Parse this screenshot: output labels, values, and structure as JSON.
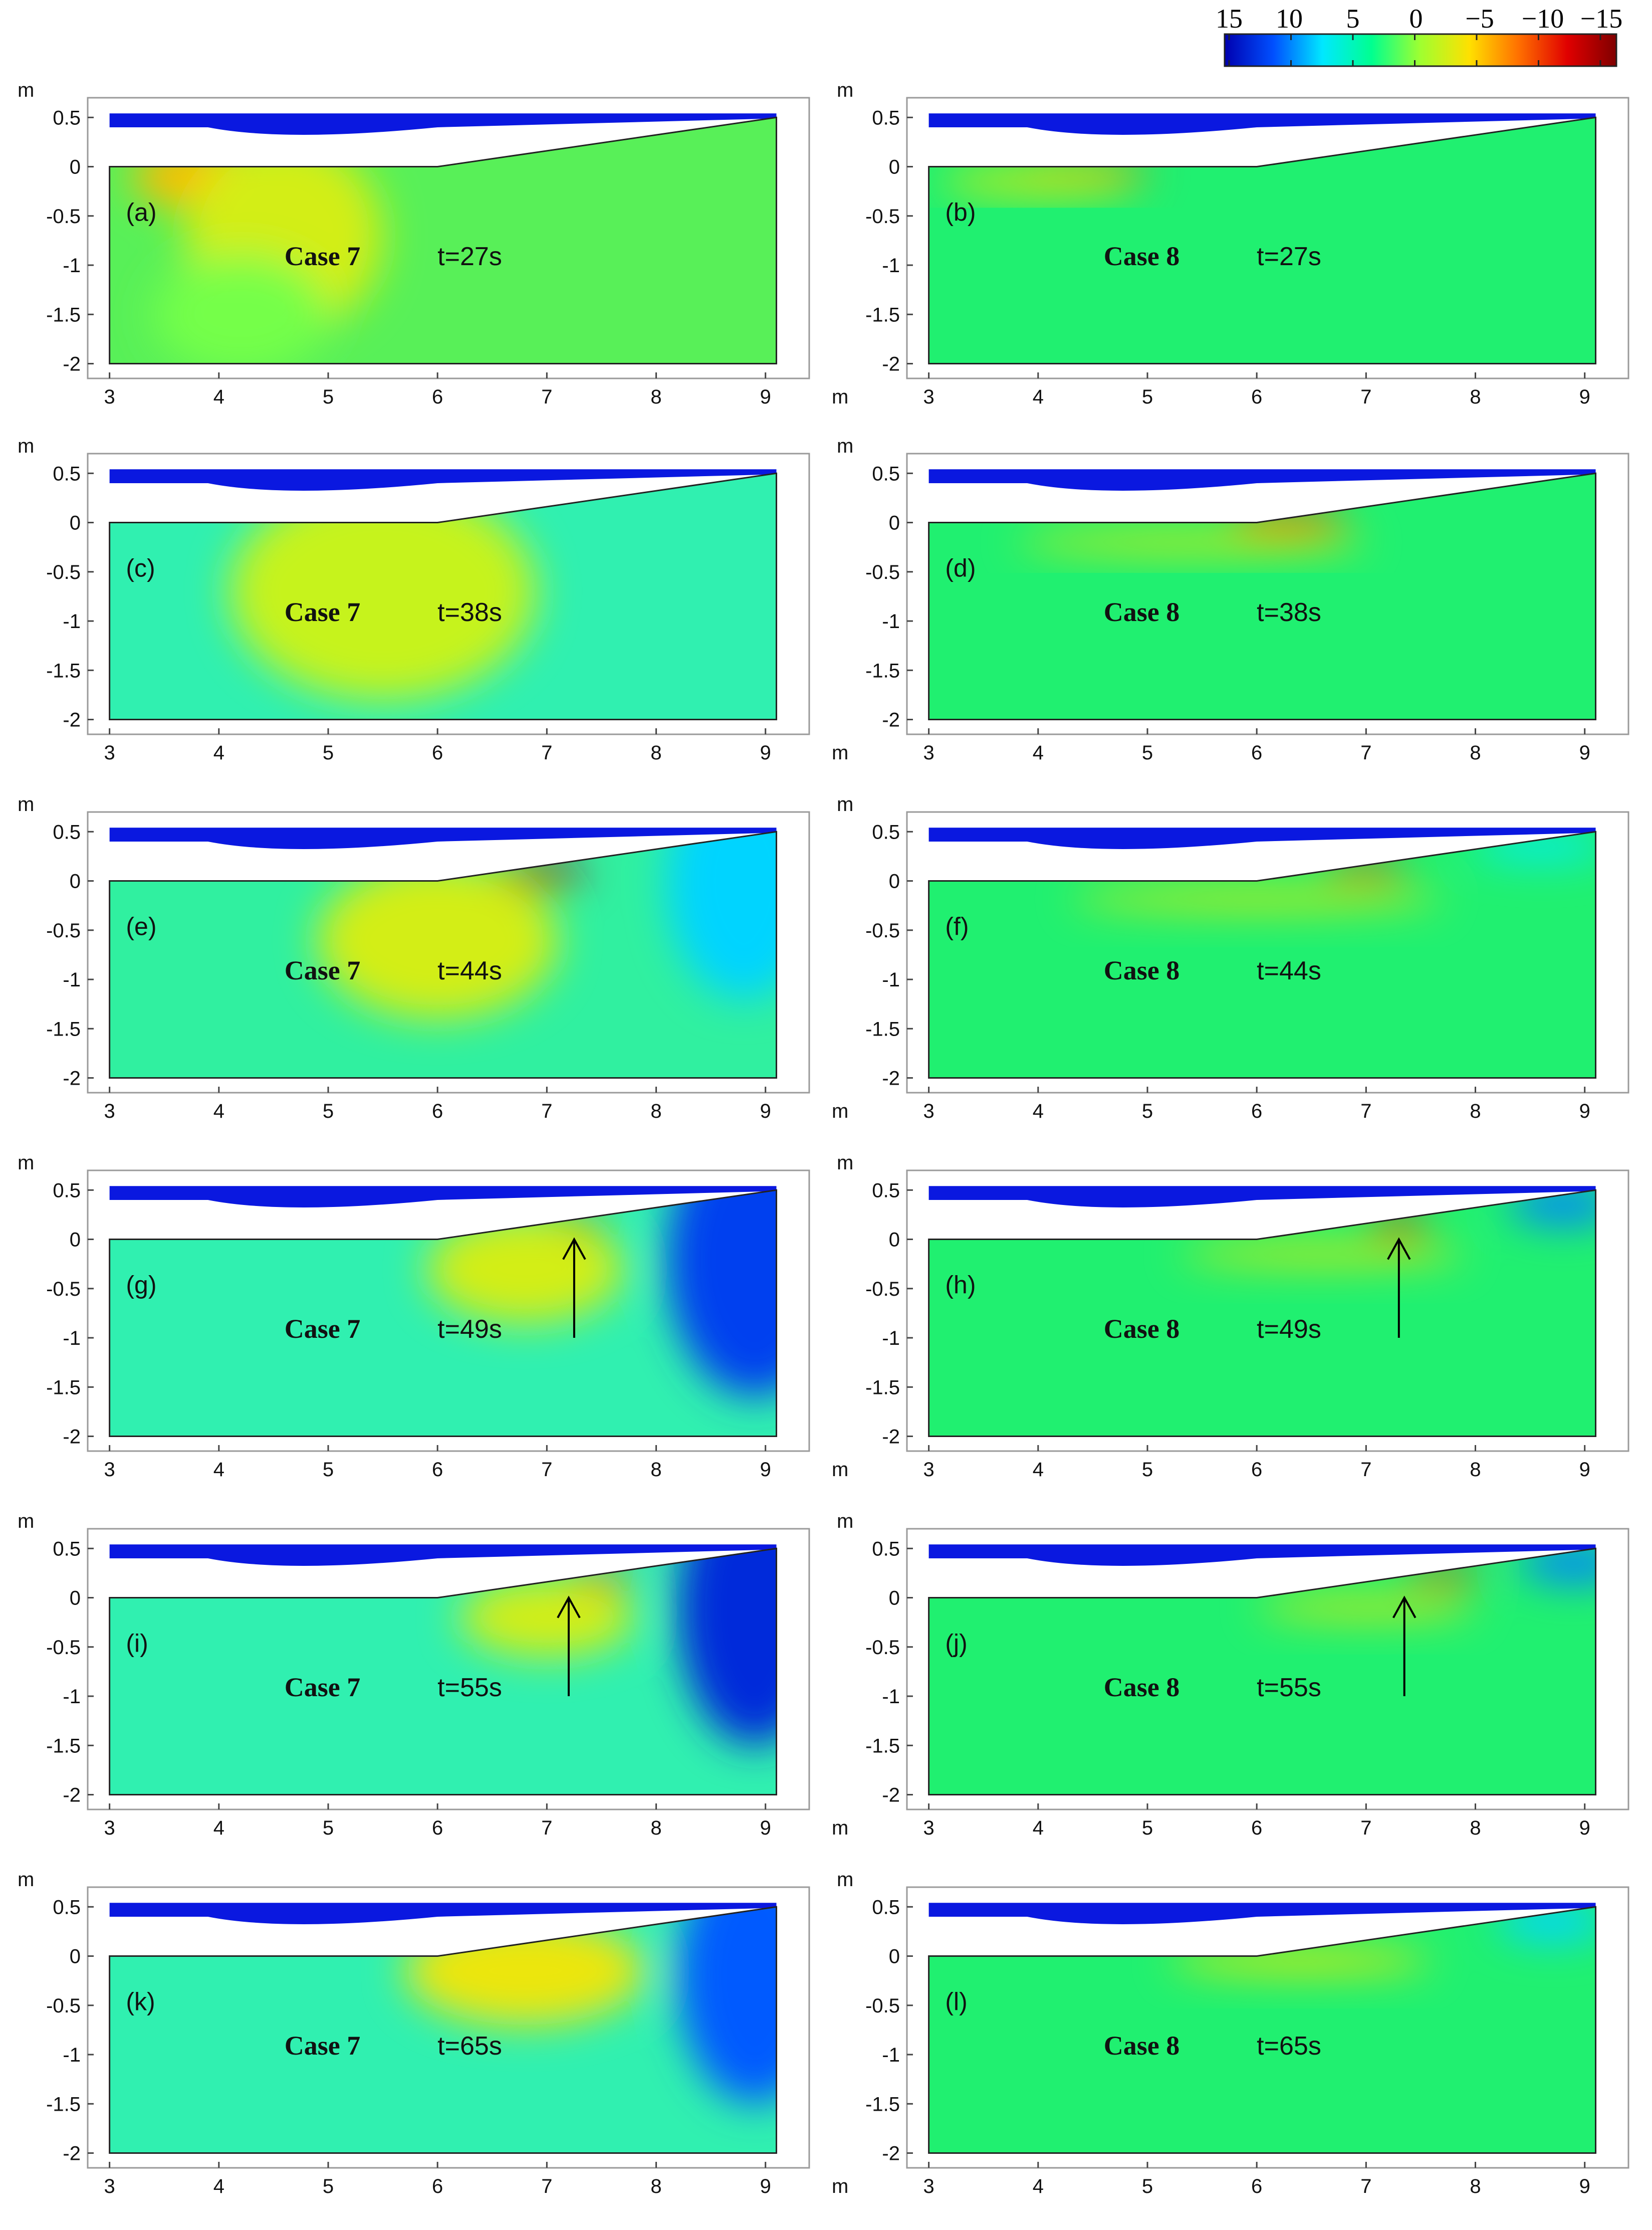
{
  "colorbar": {
    "ticks": [
      "15",
      "10",
      "5",
      "0",
      "−5",
      "−10",
      "−15"
    ],
    "stops": [
      "#0000b0",
      "#0050ff",
      "#00e8ff",
      "#00ff90",
      "#a0ff30",
      "#ffe000",
      "#ff7000",
      "#e00000",
      "#800000"
    ]
  },
  "colors": {
    "water": "#0a18e0",
    "frame": "#9a9a9a",
    "bed_line": "#222222"
  },
  "chart_data": [
    {
      "type": "heatmap",
      "panel": "(a)",
      "case": "Case 7",
      "time": "t=27s",
      "x_ticks": [
        "3",
        "4",
        "5",
        "6",
        "7",
        "8",
        "9"
      ],
      "x_unit": "m",
      "y_ticks": [
        "0.5",
        "0",
        "-0.5",
        "-1",
        "-1.5",
        "-2"
      ],
      "y_unit": "m",
      "xlim": [
        2.8,
        9.4
      ],
      "ylim": [
        -2.15,
        0.7
      ],
      "bed_profile": [
        [
          3.0,
          0.0
        ],
        [
          6.0,
          0.0
        ],
        [
          9.1,
          0.5
        ]
      ],
      "seabed_bottom": -2.0,
      "background": "#58f058",
      "hotspots": [
        {
          "x": 4.0,
          "y": -0.1,
          "rx": 0.8,
          "ry": 0.35,
          "value": -5
        },
        {
          "x": 4.6,
          "y": -0.7,
          "rx": 0.9,
          "ry": 1.0,
          "value": -2
        },
        {
          "x": 4.2,
          "y": -1.5,
          "rx": 0.8,
          "ry": 0.6,
          "value": 1
        }
      ]
    },
    {
      "type": "heatmap",
      "panel": "(b)",
      "case": "Case 8",
      "time": "t=27s",
      "x_ticks": [
        "3",
        "4",
        "5",
        "6",
        "7",
        "8",
        "9"
      ],
      "x_unit": "m",
      "y_ticks": [
        "0.5",
        "0",
        "-0.5",
        "-1",
        "-1.5",
        "-2"
      ],
      "y_unit": "m",
      "xlim": [
        2.8,
        9.4
      ],
      "ylim": [
        -2.15,
        0.7
      ],
      "bed_profile": [
        [
          3.0,
          0.0
        ],
        [
          6.0,
          0.0
        ],
        [
          9.1,
          0.5
        ]
      ],
      "seabed_bottom": -2.0,
      "background": "#20f070",
      "hotspots": [
        {
          "x": 4.4,
          "y": -0.06,
          "rx": 0.65,
          "ry": 0.08,
          "value": -9
        },
        {
          "x": 4.0,
          "y": -0.15,
          "rx": 0.9,
          "ry": 0.12,
          "value": -3
        }
      ]
    },
    {
      "type": "heatmap",
      "panel": "(c)",
      "case": "Case 7",
      "time": "t=38s",
      "x_ticks": [
        "3",
        "4",
        "5",
        "6",
        "7",
        "8",
        "9"
      ],
      "x_unit": "m",
      "y_ticks": [
        "0.5",
        "0",
        "-0.5",
        "-1",
        "-1.5",
        "-2"
      ],
      "y_unit": "m",
      "xlim": [
        2.8,
        9.4
      ],
      "ylim": [
        -2.15,
        0.7
      ],
      "bed_profile": [
        [
          3.0,
          0.0
        ],
        [
          6.0,
          0.0
        ],
        [
          9.1,
          0.5
        ]
      ],
      "seabed_bottom": -2.0,
      "background": "#30f0b0",
      "hotspots": [
        {
          "x": 5.9,
          "y": -0.08,
          "rx": 0.7,
          "ry": 0.15,
          "value": -7
        },
        {
          "x": 5.5,
          "y": -0.7,
          "rx": 1.4,
          "ry": 1.1,
          "value": -1.5
        }
      ]
    },
    {
      "type": "heatmap",
      "panel": "(d)",
      "case": "Case 8",
      "time": "t=38s",
      "x_ticks": [
        "3",
        "4",
        "5",
        "6",
        "7",
        "8",
        "9"
      ],
      "x_unit": "m",
      "y_ticks": [
        "0.5",
        "0",
        "-0.5",
        "-1",
        "-1.5",
        "-2"
      ],
      "y_unit": "m",
      "xlim": [
        2.8,
        9.4
      ],
      "ylim": [
        -2.15,
        0.7
      ],
      "bed_profile": [
        [
          3.0,
          0.0
        ],
        [
          6.0,
          0.0
        ],
        [
          9.1,
          0.5
        ]
      ],
      "seabed_bottom": -2.0,
      "background": "#20f070",
      "hotspots": [
        {
          "x": 6.3,
          "y": 0.02,
          "rx": 0.55,
          "ry": 0.1,
          "value": -9
        },
        {
          "x": 5.4,
          "y": -0.2,
          "rx": 1.6,
          "ry": 0.1,
          "value": -3
        }
      ]
    },
    {
      "type": "heatmap",
      "panel": "(e)",
      "case": "Case 7",
      "time": "t=44s",
      "x_ticks": [
        "3",
        "4",
        "5",
        "6",
        "7",
        "8",
        "9"
      ],
      "x_unit": "m",
      "y_ticks": [
        "0.5",
        "0",
        "-0.5",
        "-1",
        "-1.5",
        "-2"
      ],
      "y_unit": "m",
      "xlim": [
        2.8,
        9.4
      ],
      "ylim": [
        -2.15,
        0.7
      ],
      "bed_profile": [
        [
          3.0,
          0.0
        ],
        [
          6.0,
          0.0
        ],
        [
          9.1,
          0.5
        ]
      ],
      "seabed_bottom": -2.0,
      "background": "#30f0a0",
      "hotspots": [
        {
          "x": 6.9,
          "y": 0.07,
          "rx": 0.45,
          "ry": 0.12,
          "value": -13
        },
        {
          "x": 6.0,
          "y": -0.6,
          "rx": 1.1,
          "ry": 0.8,
          "value": -2
        },
        {
          "x": 8.8,
          "y": 0.0,
          "rx": 0.7,
          "ry": 1.2,
          "value": 8
        }
      ]
    },
    {
      "type": "heatmap",
      "panel": "(f)",
      "case": "Case 8",
      "time": "t=44s",
      "x_ticks": [
        "3",
        "4",
        "5",
        "6",
        "7",
        "8",
        "9"
      ],
      "x_unit": "m",
      "y_ticks": [
        "0.5",
        "0",
        "-0.5",
        "-1",
        "-1.5",
        "-2"
      ],
      "y_unit": "m",
      "xlim": [
        2.8,
        9.4
      ],
      "ylim": [
        -2.15,
        0.7
      ],
      "bed_profile": [
        [
          3.0,
          0.0
        ],
        [
          6.0,
          0.0
        ],
        [
          9.1,
          0.5
        ]
      ],
      "seabed_bottom": -2.0,
      "background": "#20f070",
      "hotspots": [
        {
          "x": 7.0,
          "y": 0.12,
          "rx": 0.4,
          "ry": 0.08,
          "value": -10
        },
        {
          "x": 6.0,
          "y": -0.18,
          "rx": 1.7,
          "ry": 0.1,
          "value": -3
        },
        {
          "x": 8.6,
          "y": 0.35,
          "rx": 0.6,
          "ry": 0.15,
          "value": 7
        }
      ]
    },
    {
      "type": "heatmap",
      "panel": "(g)",
      "case": "Case 7",
      "time": "t=49s",
      "x_ticks": [
        "3",
        "4",
        "5",
        "6",
        "7",
        "8",
        "9"
      ],
      "x_unit": "m",
      "y_ticks": [
        "0.5",
        "0",
        "-0.5",
        "-1",
        "-1.5",
        "-2"
      ],
      "y_unit": "m",
      "xlim": [
        2.8,
        9.4
      ],
      "ylim": [
        -2.15,
        0.7
      ],
      "bed_profile": [
        [
          3.0,
          0.0
        ],
        [
          6.0,
          0.0
        ],
        [
          9.1,
          0.5
        ]
      ],
      "seabed_bottom": -2.0,
      "background": "#30f0b0",
      "hotspots": [
        {
          "x": 7.2,
          "y": 0.15,
          "rx": 0.3,
          "ry": 0.12,
          "value": -14
        },
        {
          "x": 6.8,
          "y": -0.3,
          "rx": 0.9,
          "ry": 0.55,
          "value": -2
        },
        {
          "x": 8.9,
          "y": -0.2,
          "rx": 0.8,
          "ry": 1.4,
          "value": 12
        }
      ],
      "arrow": {
        "from": [
          7.25,
          -1.0
        ],
        "to": [
          7.25,
          0.0
        ]
      }
    },
    {
      "type": "heatmap",
      "panel": "(h)",
      "case": "Case 8",
      "time": "t=49s",
      "x_ticks": [
        "3",
        "4",
        "5",
        "6",
        "7",
        "8",
        "9"
      ],
      "x_unit": "m",
      "y_ticks": [
        "0.5",
        "0",
        "-0.5",
        "-1",
        "-1.5",
        "-2"
      ],
      "y_unit": "m",
      "xlim": [
        2.8,
        9.4
      ],
      "ylim": [
        -2.15,
        0.7
      ],
      "bed_profile": [
        [
          3.0,
          0.0
        ],
        [
          6.0,
          0.0
        ],
        [
          9.1,
          0.5
        ]
      ],
      "seabed_bottom": -2.0,
      "background": "#20f070",
      "hotspots": [
        {
          "x": 7.3,
          "y": 0.14,
          "rx": 0.28,
          "ry": 0.1,
          "value": -12
        },
        {
          "x": 6.6,
          "y": -0.15,
          "rx": 1.3,
          "ry": 0.1,
          "value": -3
        },
        {
          "x": 8.8,
          "y": 0.35,
          "rx": 0.5,
          "ry": 0.2,
          "value": 10
        }
      ],
      "arrow": {
        "from": [
          7.3,
          -1.0
        ],
        "to": [
          7.3,
          0.0
        ]
      }
    },
    {
      "type": "heatmap",
      "panel": "(i)",
      "case": "Case 7",
      "time": "t=55s",
      "x_ticks": [
        "3",
        "4",
        "5",
        "6",
        "7",
        "8",
        "9"
      ],
      "x_unit": "m",
      "y_ticks": [
        "0.5",
        "0",
        "-0.5",
        "-1",
        "-1.5",
        "-2"
      ],
      "y_unit": "m",
      "xlim": [
        2.8,
        9.4
      ],
      "ylim": [
        -2.15,
        0.7
      ],
      "bed_profile": [
        [
          3.0,
          0.0
        ],
        [
          6.0,
          0.0
        ],
        [
          9.1,
          0.5
        ]
      ],
      "seabed_bottom": -2.0,
      "background": "#30f0b0",
      "hotspots": [
        {
          "x": 7.5,
          "y": 0.2,
          "rx": 0.3,
          "ry": 0.08,
          "value": -9
        },
        {
          "x": 7.0,
          "y": -0.2,
          "rx": 0.8,
          "ry": 0.4,
          "value": -2
        },
        {
          "x": 8.9,
          "y": -0.1,
          "rx": 0.7,
          "ry": 1.4,
          "value": 13
        }
      ],
      "arrow": {
        "from": [
          7.2,
          -1.0
        ],
        "to": [
          7.2,
          0.0
        ]
      }
    },
    {
      "type": "heatmap",
      "panel": "(j)",
      "case": "Case 8",
      "time": "t=55s",
      "x_ticks": [
        "3",
        "4",
        "5",
        "6",
        "7",
        "8",
        "9"
      ],
      "x_unit": "m",
      "y_ticks": [
        "0.5",
        "0",
        "-0.5",
        "-1",
        "-1.5",
        "-2"
      ],
      "y_unit": "m",
      "xlim": [
        2.8,
        9.4
      ],
      "ylim": [
        -2.15,
        0.7
      ],
      "bed_profile": [
        [
          3.0,
          0.0
        ],
        [
          6.0,
          0.0
        ],
        [
          9.1,
          0.5
        ]
      ],
      "seabed_bottom": -2.0,
      "background": "#20f070",
      "hotspots": [
        {
          "x": 7.7,
          "y": 0.22,
          "rx": 0.35,
          "ry": 0.08,
          "value": -10
        },
        {
          "x": 7.0,
          "y": -0.1,
          "rx": 1.0,
          "ry": 0.1,
          "value": -3
        },
        {
          "x": 8.9,
          "y": 0.35,
          "rx": 0.5,
          "ry": 0.2,
          "value": 10
        }
      ],
      "arrow": {
        "from": [
          7.35,
          -1.0
        ],
        "to": [
          7.35,
          0.0
        ]
      }
    },
    {
      "type": "heatmap",
      "panel": "(k)",
      "case": "Case 7",
      "time": "t=65s",
      "x_ticks": [
        "3",
        "4",
        "5",
        "6",
        "7",
        "8",
        "9"
      ],
      "x_unit": "m",
      "y_ticks": [
        "0.5",
        "0",
        "-0.5",
        "-1",
        "-1.5",
        "-2"
      ],
      "y_unit": "m",
      "xlim": [
        2.8,
        9.4
      ],
      "ylim": [
        -2.15,
        0.7
      ],
      "bed_profile": [
        [
          3.0,
          0.0
        ],
        [
          6.0,
          0.0
        ],
        [
          9.1,
          0.5
        ]
      ],
      "seabed_bottom": -2.0,
      "background": "#30f0b0",
      "hotspots": [
        {
          "x": 6.8,
          "y": -0.15,
          "rx": 1.1,
          "ry": 0.55,
          "value": -3
        },
        {
          "x": 8.9,
          "y": -0.2,
          "rx": 0.7,
          "ry": 1.3,
          "value": 11
        }
      ]
    },
    {
      "type": "heatmap",
      "panel": "(l)",
      "case": "Case 8",
      "time": "t=65s",
      "x_ticks": [
        "3",
        "4",
        "5",
        "6",
        "7",
        "8",
        "9"
      ],
      "x_unit": "m",
      "y_ticks": [
        "0.5",
        "0",
        "-0.5",
        "-1",
        "-1.5",
        "-2"
      ],
      "y_unit": "m",
      "xlim": [
        2.8,
        9.4
      ],
      "ylim": [
        -2.15,
        0.7
      ],
      "bed_profile": [
        [
          3.0,
          0.0
        ],
        [
          6.0,
          0.0
        ],
        [
          9.1,
          0.5
        ]
      ],
      "seabed_bottom": -2.0,
      "background": "#20f070",
      "hotspots": [
        {
          "x": 6.4,
          "y": -0.05,
          "rx": 1.2,
          "ry": 0.12,
          "value": -3
        },
        {
          "x": 8.7,
          "y": 0.35,
          "rx": 0.5,
          "ry": 0.2,
          "value": 8
        }
      ]
    }
  ]
}
